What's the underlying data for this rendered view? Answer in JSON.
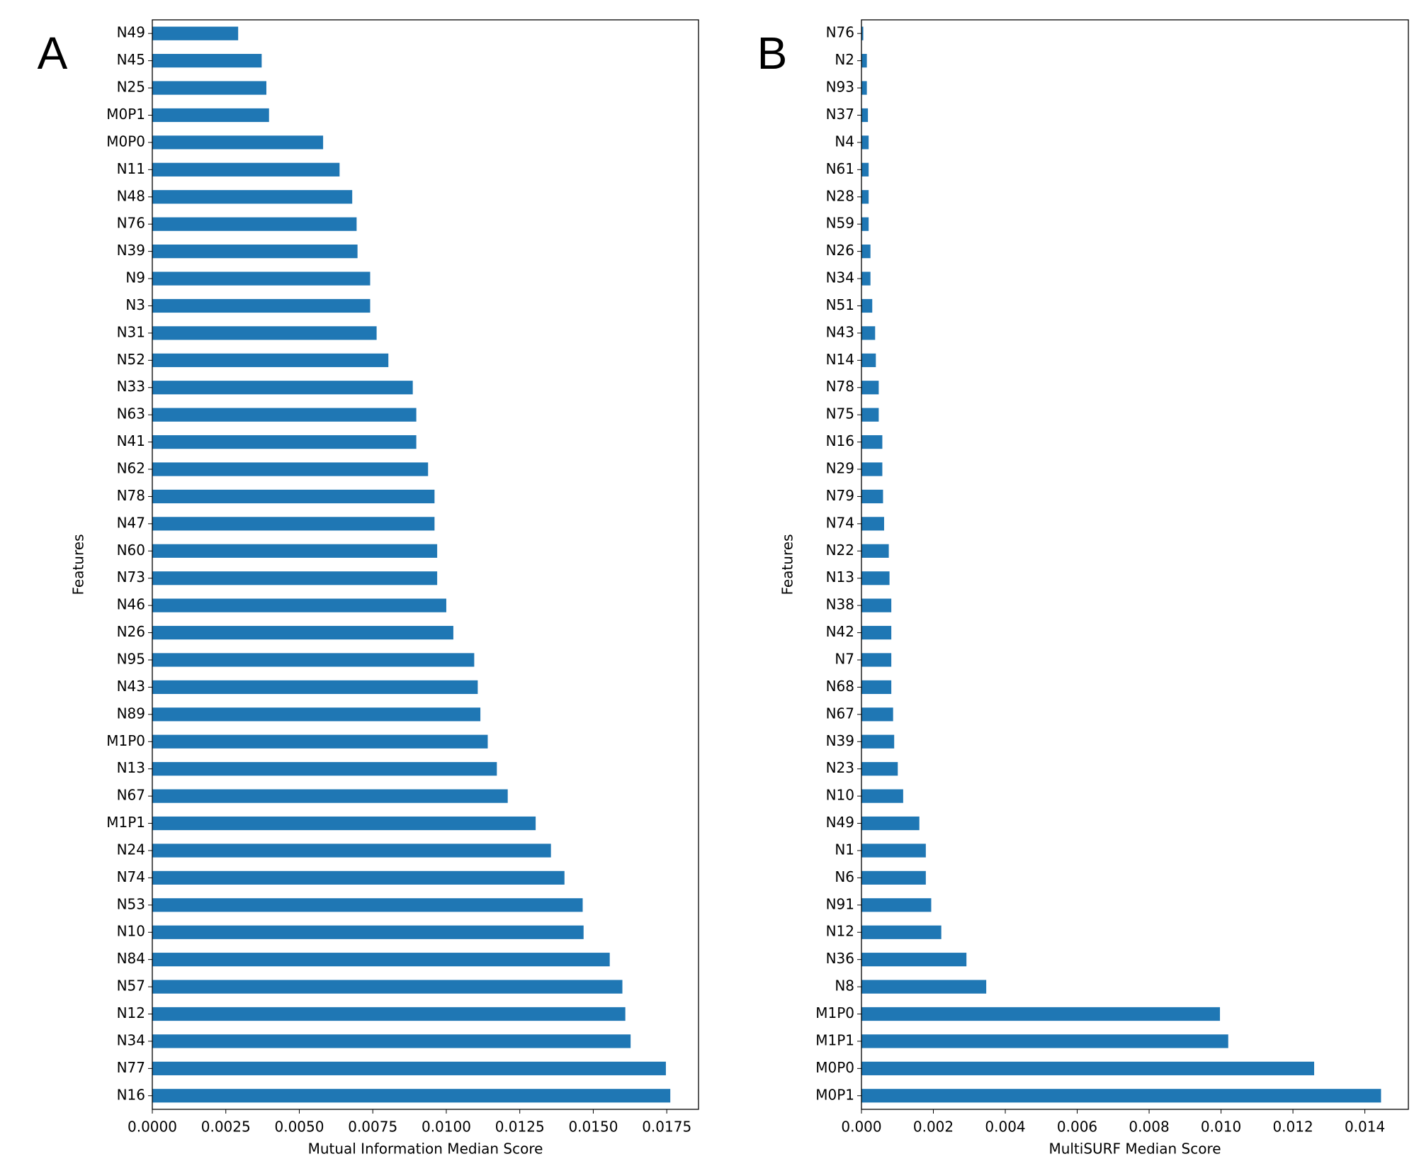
{
  "chart_data": [
    {
      "type": "barh",
      "panel_label": "A",
      "xlabel": "Mutual Information Median Score",
      "ylabel": "Features",
      "color": "#1f77b4",
      "categories": [
        "N49",
        "N45",
        "N25",
        "M0P1",
        "M0P0",
        "N11",
        "N48",
        "N76",
        "N39",
        "N9",
        "N3",
        "N31",
        "N52",
        "N33",
        "N63",
        "N41",
        "N62",
        "N78",
        "N47",
        "N60",
        "N73",
        "N46",
        "N26",
        "N95",
        "N43",
        "N89",
        "M1P0",
        "N13",
        "N67",
        "M1P1",
        "N24",
        "N74",
        "N53",
        "N10",
        "N84",
        "N57",
        "N12",
        "N34",
        "N77",
        "N16"
      ],
      "values": [
        0.00292,
        0.00372,
        0.00388,
        0.00397,
        0.00581,
        0.00637,
        0.0068,
        0.00695,
        0.00698,
        0.00741,
        0.00741,
        0.00763,
        0.00803,
        0.00886,
        0.00898,
        0.00898,
        0.00938,
        0.0096,
        0.0096,
        0.00969,
        0.00969,
        0.01,
        0.01024,
        0.01095,
        0.01107,
        0.01116,
        0.01141,
        0.01172,
        0.01209,
        0.01304,
        0.01356,
        0.01402,
        0.01464,
        0.01467,
        0.01556,
        0.01599,
        0.01609,
        0.01627,
        0.01747,
        0.01762
      ],
      "xlim": [
        0,
        0.01858
      ],
      "xticks": [
        {
          "value": 0,
          "label": "0.0000"
        },
        {
          "value": 0.0025,
          "label": "0.0025"
        },
        {
          "value": 0.005,
          "label": "0.0050"
        },
        {
          "value": 0.0075,
          "label": "0.0075"
        },
        {
          "value": 0.01,
          "label": "0.0100"
        },
        {
          "value": 0.0125,
          "label": "0.0125"
        },
        {
          "value": 0.015,
          "label": "0.0150"
        },
        {
          "value": 0.0175,
          "label": "0.0175"
        }
      ]
    },
    {
      "type": "barh",
      "panel_label": "B",
      "xlabel": "MultiSURF Median Score",
      "ylabel": "Features",
      "color": "#1f77b4",
      "categories": [
        "N76",
        "N2",
        "N93",
        "N37",
        "N4",
        "N61",
        "N28",
        "N59",
        "N26",
        "N34",
        "N51",
        "N43",
        "N14",
        "N78",
        "N75",
        "N16",
        "N29",
        "N79",
        "N74",
        "N22",
        "N13",
        "N38",
        "N42",
        "N7",
        "N68",
        "N67",
        "N39",
        "N23",
        "N10",
        "N49",
        "N1",
        "N6",
        "N91",
        "N12",
        "N36",
        "N8",
        "M1P0",
        "M1P1",
        "M0P0",
        "M0P1"
      ],
      "values": [
        5e-05,
        0.00015,
        0.00015,
        0.00018,
        0.0002,
        0.0002,
        0.0002,
        0.0002,
        0.00025,
        0.00025,
        0.0003,
        0.00038,
        0.0004,
        0.00048,
        0.00048,
        0.00058,
        0.00058,
        0.0006,
        0.00063,
        0.00076,
        0.00078,
        0.00083,
        0.00083,
        0.00083,
        0.00083,
        0.00088,
        0.00091,
        0.00101,
        0.00116,
        0.00161,
        0.00179,
        0.00179,
        0.00194,
        0.00222,
        0.00292,
        0.00347,
        0.00997,
        0.0102,
        0.01259,
        0.01445
      ],
      "xlim": [
        0,
        0.01521
      ],
      "xticks": [
        {
          "value": 0,
          "label": "0.000"
        },
        {
          "value": 0.002,
          "label": "0.002"
        },
        {
          "value": 0.004,
          "label": "0.004"
        },
        {
          "value": 0.006,
          "label": "0.006"
        },
        {
          "value": 0.008,
          "label": "0.008"
        },
        {
          "value": 0.01,
          "label": "0.010"
        },
        {
          "value": 0.012,
          "label": "0.012"
        },
        {
          "value": 0.014,
          "label": "0.014"
        }
      ]
    }
  ]
}
